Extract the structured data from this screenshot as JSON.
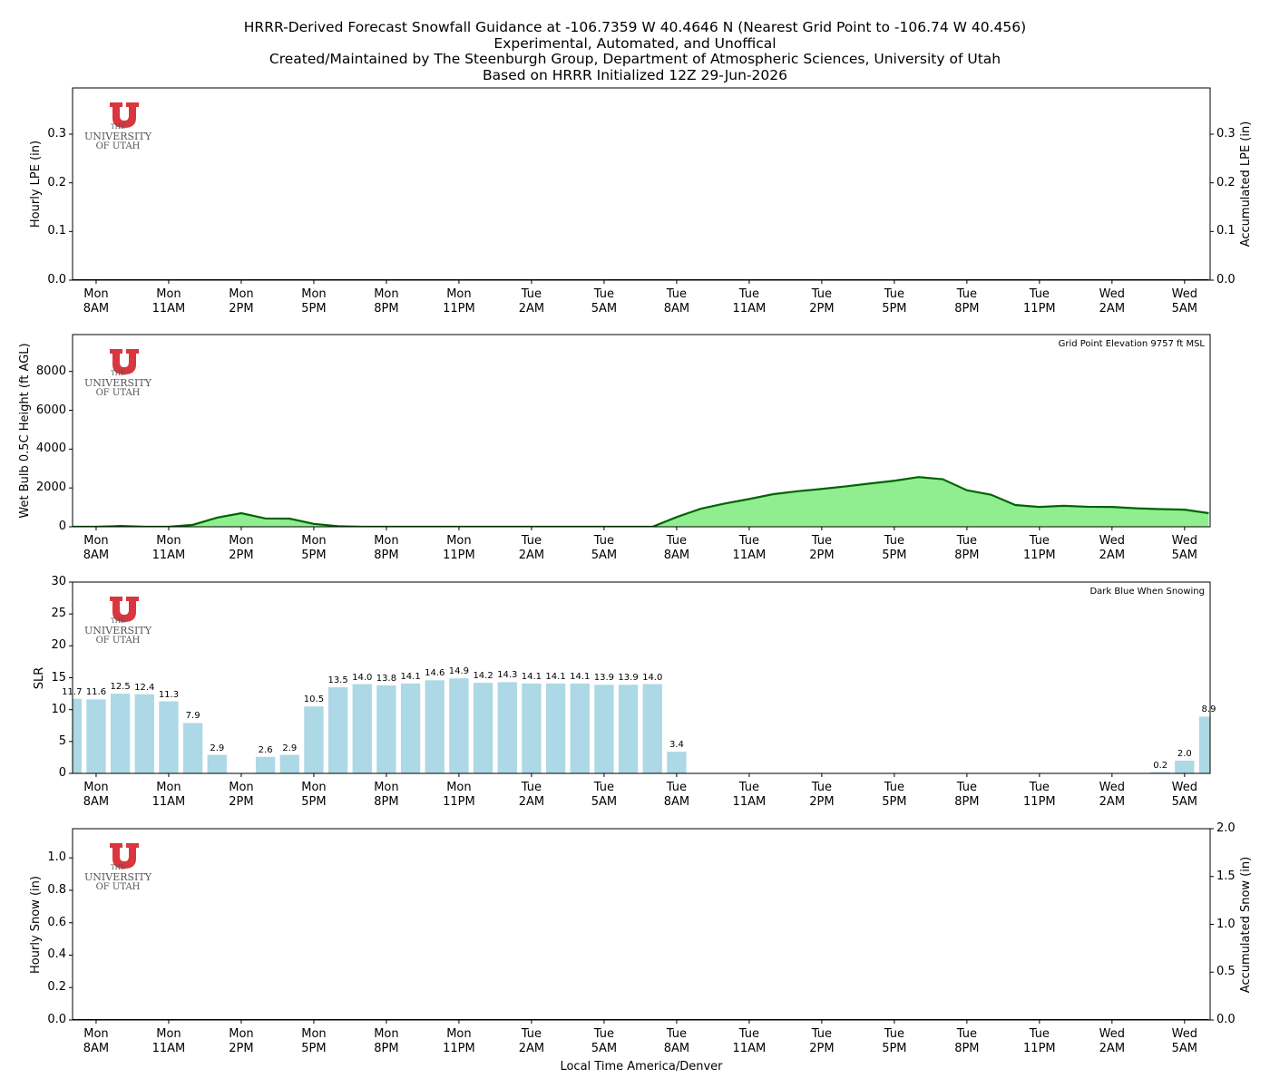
{
  "title": "HRRR-Derived Forecast Snowfall Guidance at -106.7359 W 40.4646 N (Nearest Grid Point to -106.74 W 40.456)\nExperimental, Automated, and Unoffical\nCreated/Maintained by The Steenburgh Group, Department of Atmospheric Sciences, University of Utah\nBased on HRRR Initialized 12Z 29-Jun-2026",
  "x_label": "Local Time America/Denver",
  "logo": [
    "THE",
    "UNIVERSITY",
    "OF UTAH"
  ],
  "chart_data": [
    {
      "type": "bar",
      "y_label": "Hourly LPE (in)",
      "y2_label": "Accumulated LPE (in)",
      "categories": [
        null,
        "Mon\n8AM",
        null,
        null,
        "Mon\n11AM",
        null,
        null,
        "Mon\n2PM",
        null,
        null,
        "Mon\n5PM",
        null,
        null,
        "Mon\n8PM",
        null,
        null,
        "Mon\n11PM",
        null,
        null,
        "Tue\n2AM",
        null,
        null,
        "Tue\n5AM",
        null,
        null,
        "Tue\n8AM",
        null,
        null,
        "Tue\n11AM",
        null,
        null,
        "Tue\n2PM",
        null,
        null,
        "Tue\n5PM",
        null,
        null,
        "Tue\n8PM",
        null,
        null,
        "Tue\n11PM",
        null,
        null,
        "Wed\n2AM",
        null,
        null,
        "Wed\n5AM",
        null
      ],
      "ylim": [
        0,
        0.395
      ],
      "yticks": [
        {
          "value": 0,
          "label": "0.0"
        },
        0.1,
        0.2,
        0.3
      ],
      "y2lim": [
        0,
        0.395
      ],
      "y2ticks": [
        {
          "value": 0,
          "label": "0.0"
        },
        0.1,
        0.2,
        0.3
      ],
      "series": [
        {
          "type": "bar",
          "color": "#1e90ff",
          "values": [
            0,
            0,
            0,
            0,
            0,
            0,
            0,
            0,
            0,
            0,
            0,
            0,
            0,
            0,
            0,
            0,
            0,
            0,
            0,
            0,
            0,
            0,
            0,
            0,
            0,
            0,
            0,
            0,
            0,
            0,
            0,
            0,
            0,
            0,
            0,
            0,
            0,
            0,
            0,
            0,
            0,
            0,
            0,
            0,
            0,
            0,
            0,
            0
          ]
        },
        {
          "type": "line",
          "axis": "y2",
          "color": "#000000",
          "values": [
            0,
            0,
            0,
            0,
            0,
            0,
            0,
            0,
            0,
            0,
            0,
            0,
            0,
            0,
            0,
            0,
            0,
            0,
            0,
            0,
            0,
            0,
            0,
            0,
            0,
            0,
            0,
            0,
            0,
            0,
            0,
            0,
            0,
            0,
            0,
            0,
            0,
            0,
            0,
            0,
            0,
            0,
            0,
            0,
            0,
            0,
            0,
            0
          ]
        }
      ]
    },
    {
      "type": "area",
      "y_label": "Wet Bulb 0.5C Height (ft AGL)",
      "annotation": "Grid Point Elevation 9757 ft MSL",
      "categories": [
        null,
        "Mon\n8AM",
        null,
        null,
        "Mon\n11AM",
        null,
        null,
        "Mon\n2PM",
        null,
        null,
        "Mon\n5PM",
        null,
        null,
        "Mon\n8PM",
        null,
        null,
        "Mon\n11PM",
        null,
        null,
        "Tue\n2AM",
        null,
        null,
        "Tue\n5AM",
        null,
        null,
        "Tue\n8AM",
        null,
        null,
        "Tue\n11AM",
        null,
        null,
        "Tue\n2PM",
        null,
        null,
        "Tue\n5PM",
        null,
        null,
        "Tue\n8PM",
        null,
        null,
        "Tue\n11PM",
        null,
        null,
        "Wed\n2AM",
        null,
        null,
        "Wed\n5AM",
        null
      ],
      "ylim": [
        0,
        9900
      ],
      "yticks": [
        0,
        2000,
        4000,
        6000,
        8000
      ],
      "series": [
        {
          "type": "area",
          "color": "#90ee90",
          "line_color": "#006400",
          "values": [
            0,
            0,
            40,
            0,
            0,
            100,
            470,
            700,
            430,
            420,
            150,
            30,
            0,
            0,
            0,
            0,
            0,
            0,
            0,
            0,
            0,
            0,
            0,
            0,
            0,
            500,
            930,
            1200,
            1430,
            1680,
            1830,
            1950,
            2080,
            2230,
            2370,
            2560,
            2450,
            1880,
            1650,
            1120,
            1020,
            1080,
            1030,
            1020,
            950,
            910,
            880,
            700
          ]
        }
      ]
    },
    {
      "type": "bar",
      "y_label": "SLR",
      "annotation": "Dark Blue When Snowing",
      "categories": [
        null,
        "Mon\n8AM",
        null,
        null,
        "Mon\n11AM",
        null,
        null,
        "Mon\n2PM",
        null,
        null,
        "Mon\n5PM",
        null,
        null,
        "Mon\n8PM",
        null,
        null,
        "Mon\n11PM",
        null,
        null,
        "Tue\n2AM",
        null,
        null,
        "Tue\n5AM",
        null,
        null,
        "Tue\n8AM",
        null,
        null,
        "Tue\n11AM",
        null,
        null,
        "Tue\n2PM",
        null,
        null,
        "Tue\n5PM",
        null,
        null,
        "Tue\n8PM",
        null,
        null,
        "Tue\n11PM",
        null,
        null,
        "Wed\n2AM",
        null,
        null,
        "Wed\n5AM",
        null
      ],
      "ylim": [
        0,
        30
      ],
      "yticks": [
        0,
        5,
        10,
        15,
        20,
        25,
        30
      ],
      "series": [
        {
          "type": "bar",
          "color": "#add8e6",
          "values": [
            11.7,
            11.6,
            12.5,
            12.4,
            11.3,
            7.9,
            2.9,
            0,
            2.6,
            2.9,
            10.5,
            13.5,
            14.0,
            13.8,
            14.1,
            14.6,
            14.9,
            14.2,
            14.3,
            14.1,
            14.1,
            14.1,
            13.9,
            13.9,
            14.0,
            3.4,
            0,
            0,
            0,
            0,
            0,
            0,
            0,
            0,
            0,
            0,
            0,
            0,
            0,
            0,
            0,
            0,
            0,
            0,
            0,
            0.2,
            2.0,
            8.9
          ],
          "value_labels": [
            "11.7",
            "11.6",
            "12.5",
            "12.4",
            "11.3",
            "7.9",
            "2.9",
            null,
            "2.6",
            "2.9",
            "10.5",
            "13.5",
            "14.0",
            "13.8",
            "14.1",
            "14.6",
            "14.9",
            "14.2",
            "14.3",
            "14.1",
            "14.1",
            "14.1",
            "13.9",
            "13.9",
            "14.0",
            "3.4",
            null,
            null,
            null,
            null,
            null,
            null,
            null,
            null,
            null,
            null,
            null,
            null,
            null,
            null,
            null,
            null,
            null,
            null,
            null,
            "0.2",
            "2.0",
            "8.9"
          ]
        }
      ]
    },
    {
      "type": "bar",
      "y_label": "Hourly Snow (in)",
      "y2_label": "Accumulated Snow (in)",
      "categories": [
        null,
        "Mon\n8AM",
        null,
        null,
        "Mon\n11AM",
        null,
        null,
        "Mon\n2PM",
        null,
        null,
        "Mon\n5PM",
        null,
        null,
        "Mon\n8PM",
        null,
        null,
        "Mon\n11PM",
        null,
        null,
        "Tue\n2AM",
        null,
        null,
        "Tue\n5AM",
        null,
        null,
        "Tue\n8AM",
        null,
        null,
        "Tue\n11AM",
        null,
        null,
        "Tue\n2PM",
        null,
        null,
        "Tue\n5PM",
        null,
        null,
        "Tue\n8PM",
        null,
        null,
        "Tue\n11PM",
        null,
        null,
        "Wed\n2AM",
        null,
        null,
        "Wed\n5AM",
        null
      ],
      "ylim": [
        0,
        1.18
      ],
      "yticks": [
        {
          "value": 0,
          "label": "0.0"
        },
        0.2,
        0.4,
        0.6,
        0.8,
        {
          "value": 1,
          "label": "1.0"
        }
      ],
      "y2lim": [
        0,
        2
      ],
      "y2ticks": [
        {
          "value": 0,
          "label": "0.0"
        },
        0.5,
        {
          "value": 1,
          "label": "1.0"
        },
        1.5,
        {
          "value": 2,
          "label": "2.0"
        }
      ],
      "series": [
        {
          "type": "bar",
          "color": "#00008b",
          "values": [
            0,
            0,
            0,
            0,
            0,
            0,
            0,
            0,
            0,
            0,
            0,
            0,
            0,
            0,
            0,
            0,
            0,
            0,
            0,
            0,
            0,
            0,
            0,
            0,
            0,
            0,
            0,
            0,
            0,
            0,
            0,
            0,
            0,
            0,
            0,
            0,
            0,
            0,
            0,
            0,
            0,
            0,
            0,
            0,
            0,
            0,
            0,
            0
          ]
        },
        {
          "type": "line",
          "axis": "y2",
          "color": "#000000",
          "values": [
            0,
            0,
            0,
            0,
            0,
            0,
            0,
            0,
            0,
            0,
            0,
            0,
            0,
            0,
            0,
            0,
            0,
            0,
            0,
            0,
            0,
            0,
            0,
            0,
            0,
            0,
            0,
            0,
            0,
            0,
            0,
            0,
            0,
            0,
            0,
            0,
            0,
            0,
            0,
            0,
            0,
            0,
            0,
            0,
            0,
            0,
            0,
            0
          ]
        }
      ]
    }
  ]
}
